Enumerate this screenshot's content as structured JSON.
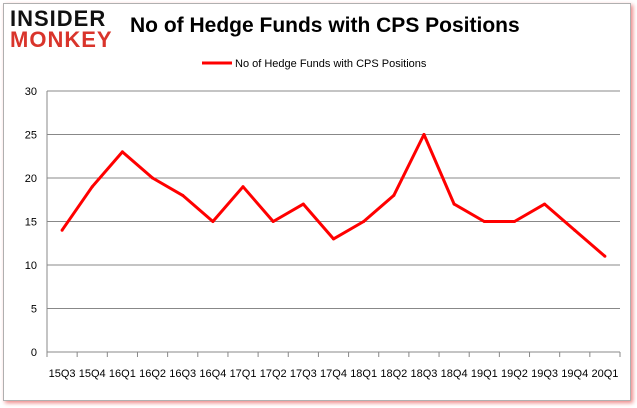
{
  "logo": {
    "line1": "INSIDER",
    "line2": "MONKEY"
  },
  "chart_data": {
    "type": "line",
    "title": "No of Hedge Funds with CPS Positions",
    "categories": [
      "15Q3",
      "15Q4",
      "16Q1",
      "16Q2",
      "16Q3",
      "16Q4",
      "17Q1",
      "17Q2",
      "17Q3",
      "17Q4",
      "18Q1",
      "18Q2",
      "18Q3",
      "18Q4",
      "19Q1",
      "19Q2",
      "19Q3",
      "19Q4",
      "20Q1"
    ],
    "series": [
      {
        "name": "No of Hedge Funds with CPS Positions",
        "color": "#ff0000",
        "values": [
          14,
          19,
          23,
          20,
          18,
          15,
          19,
          15,
          17,
          13,
          15,
          18,
          25,
          17,
          15,
          15,
          17,
          14,
          11
        ]
      }
    ],
    "ylim": [
      0,
      30
    ],
    "yticks": [
      0,
      5,
      10,
      15,
      20,
      25,
      30
    ],
    "grid": true,
    "legend": "top"
  }
}
